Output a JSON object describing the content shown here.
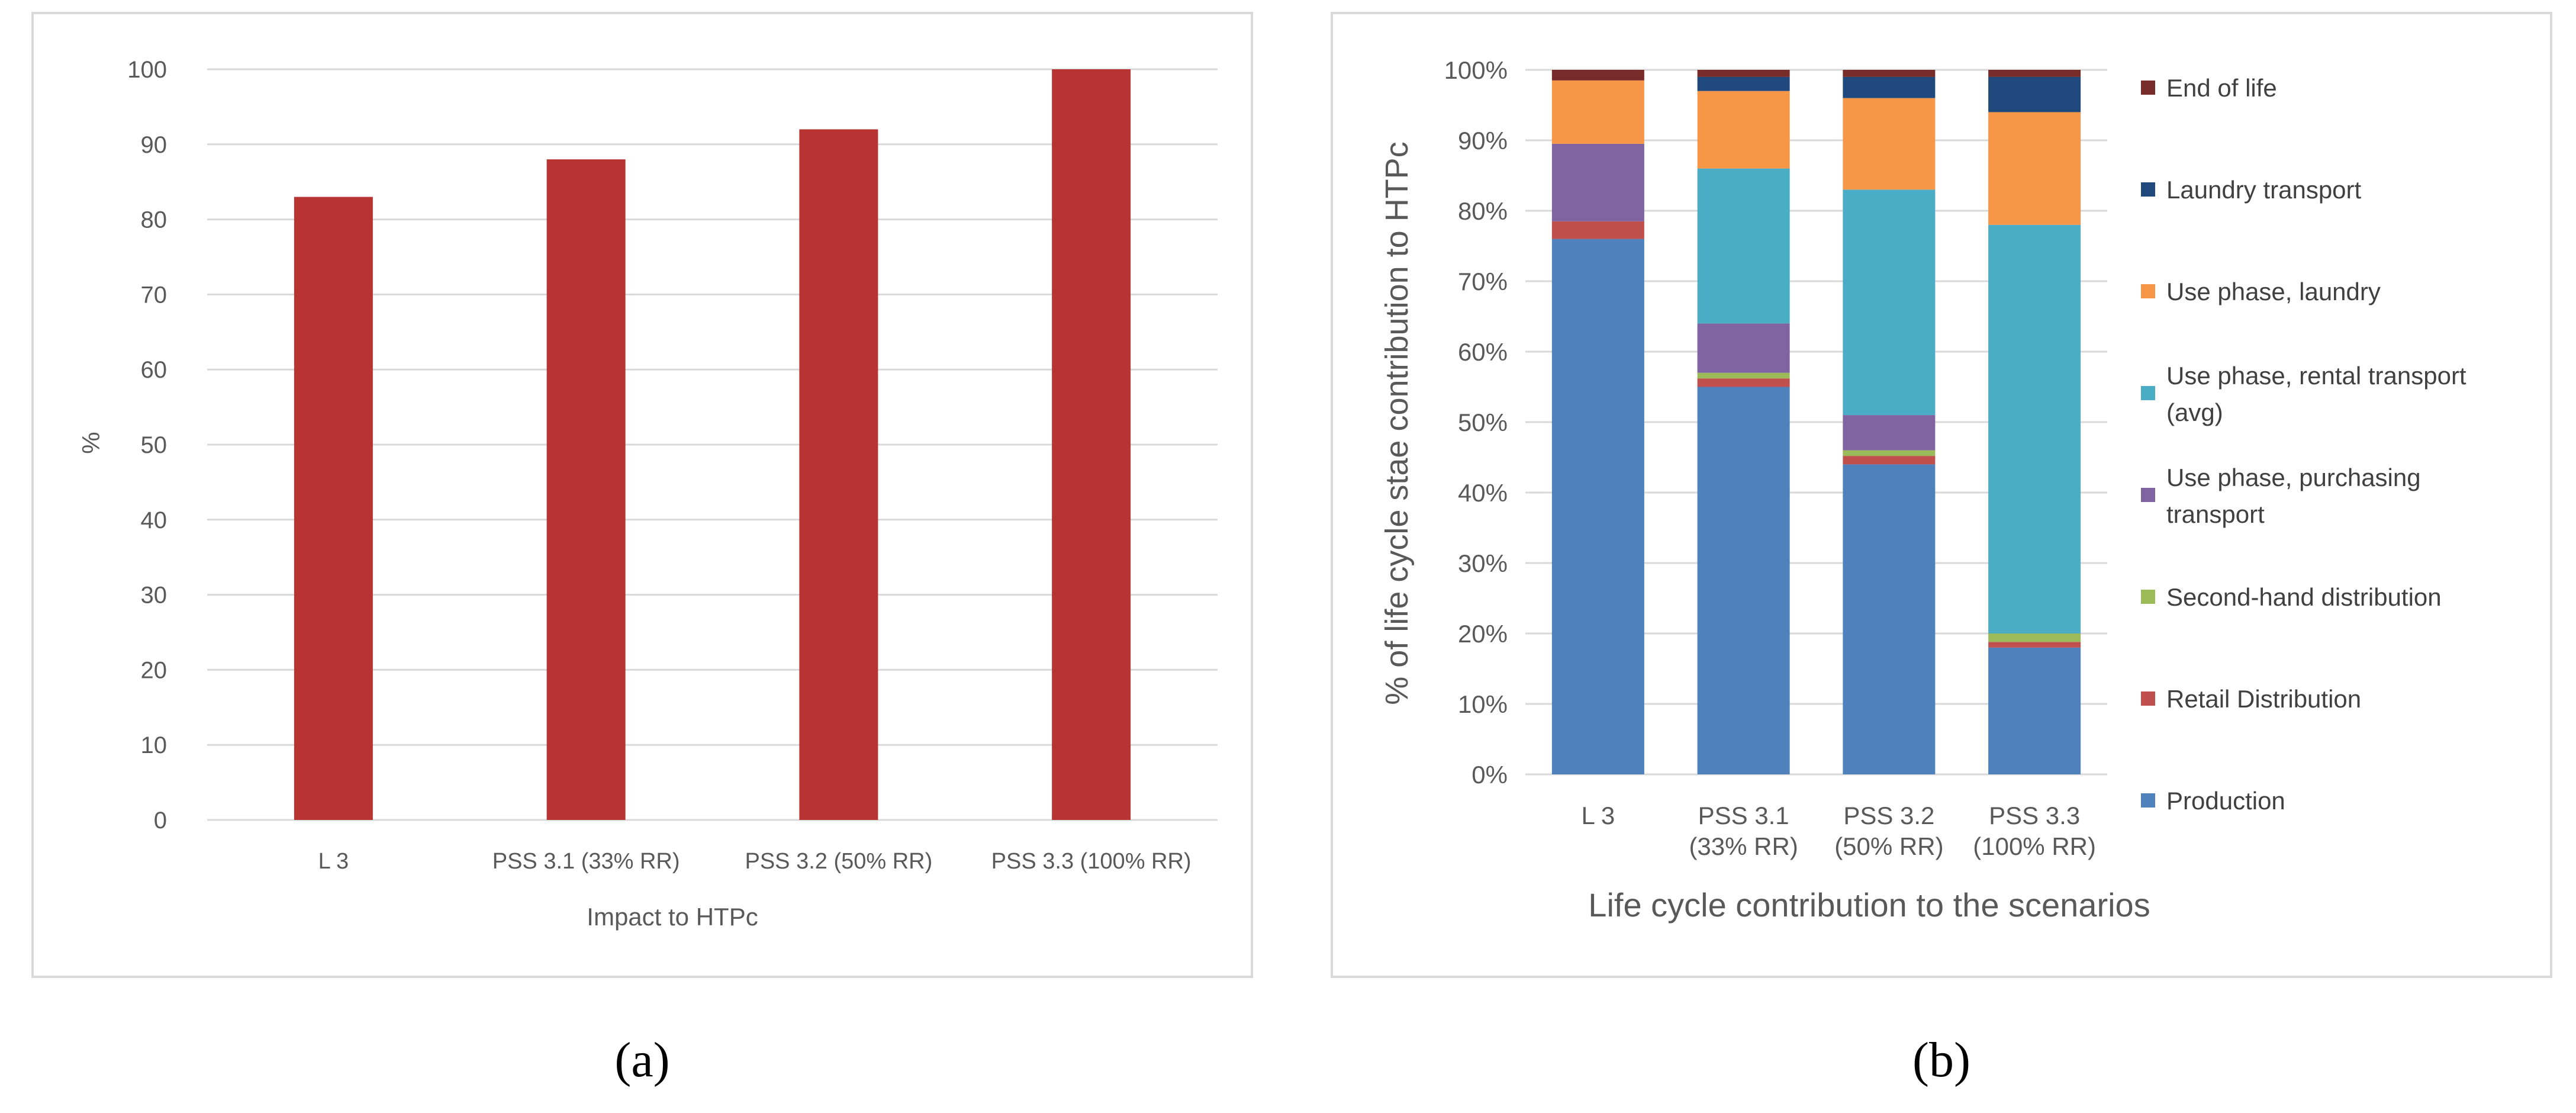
{
  "panel_labels": {
    "a": "(a)",
    "b": "(b)"
  },
  "colors": {
    "bar_a": "#b83432",
    "grid": "#d9d9d9",
    "border": "#d9d9d9",
    "production": "#4f81bd",
    "retail": "#c0504d",
    "second_hand": "#9bbb59",
    "purchasing_transport": "#8064a2",
    "rental_transport": "#4bacc6",
    "laundry": "#f79646",
    "laundry_transport": "#1f497d",
    "end_of_life": "#772c2a"
  },
  "chart_data": [
    {
      "id": "a",
      "type": "bar",
      "title": "",
      "xlabel": "Impact to HTPc",
      "ylabel": "%",
      "ylim": [
        0,
        100
      ],
      "yticks": [
        0,
        10,
        20,
        30,
        40,
        50,
        60,
        70,
        80,
        90,
        100
      ],
      "grid": true,
      "categories": [
        "L 3",
        "PSS 3.1 (33% RR)",
        "PSS 3.2 (50% RR)",
        "PSS 3.3 (100% RR)"
      ],
      "values": [
        83,
        88,
        92,
        100
      ]
    },
    {
      "id": "b",
      "type": "bar",
      "stacked": true,
      "title": "",
      "xlabel": "Life cycle contribution to the scenarios",
      "ylabel": "% of life cycle stae contribution to HTPc",
      "ylim": [
        0,
        100
      ],
      "yticks": [
        "0%",
        "10%",
        "20%",
        "30%",
        "40%",
        "50%",
        "60%",
        "70%",
        "80%",
        "90%",
        "100%"
      ],
      "grid": true,
      "legend_position": "right",
      "categories": [
        [
          "L 3"
        ],
        [
          "PSS 3.1",
          "(33% RR)"
        ],
        [
          "PSS 3.2",
          "(50% RR)"
        ],
        [
          "PSS 3.3",
          "(100% RR)"
        ]
      ],
      "series": [
        {
          "name": "Production",
          "color_key": "production",
          "values": [
            76,
            55,
            44,
            18
          ]
        },
        {
          "name": "Retail Distribution",
          "color_key": "retail",
          "values": [
            2.5,
            1.2,
            1.2,
            0.8
          ]
        },
        {
          "name": "Second-hand distribution",
          "color_key": "second_hand",
          "values": [
            0,
            0.8,
            0.8,
            1.2
          ]
        },
        {
          "name": "Use phase, purchasing transport",
          "legend_lines": [
            "Use phase, purchasing",
            "transport"
          ],
          "color_key": "purchasing_transport",
          "values": [
            11,
            7,
            5,
            0
          ]
        },
        {
          "name": "Use phase, rental transport (avg)",
          "legend_lines": [
            "Use phase, rental transport",
            "(avg)"
          ],
          "color_key": "rental_transport",
          "values": [
            0,
            22,
            32,
            58
          ]
        },
        {
          "name": "Use phase, laundry",
          "color_key": "laundry",
          "values": [
            9,
            11,
            13,
            16
          ]
        },
        {
          "name": "Laundry transport",
          "color_key": "laundry_transport",
          "values": [
            0,
            2,
            3,
            5
          ]
        },
        {
          "name": "End of life",
          "color_key": "end_of_life",
          "values": [
            1.5,
            1,
            1,
            1
          ]
        }
      ]
    }
  ]
}
